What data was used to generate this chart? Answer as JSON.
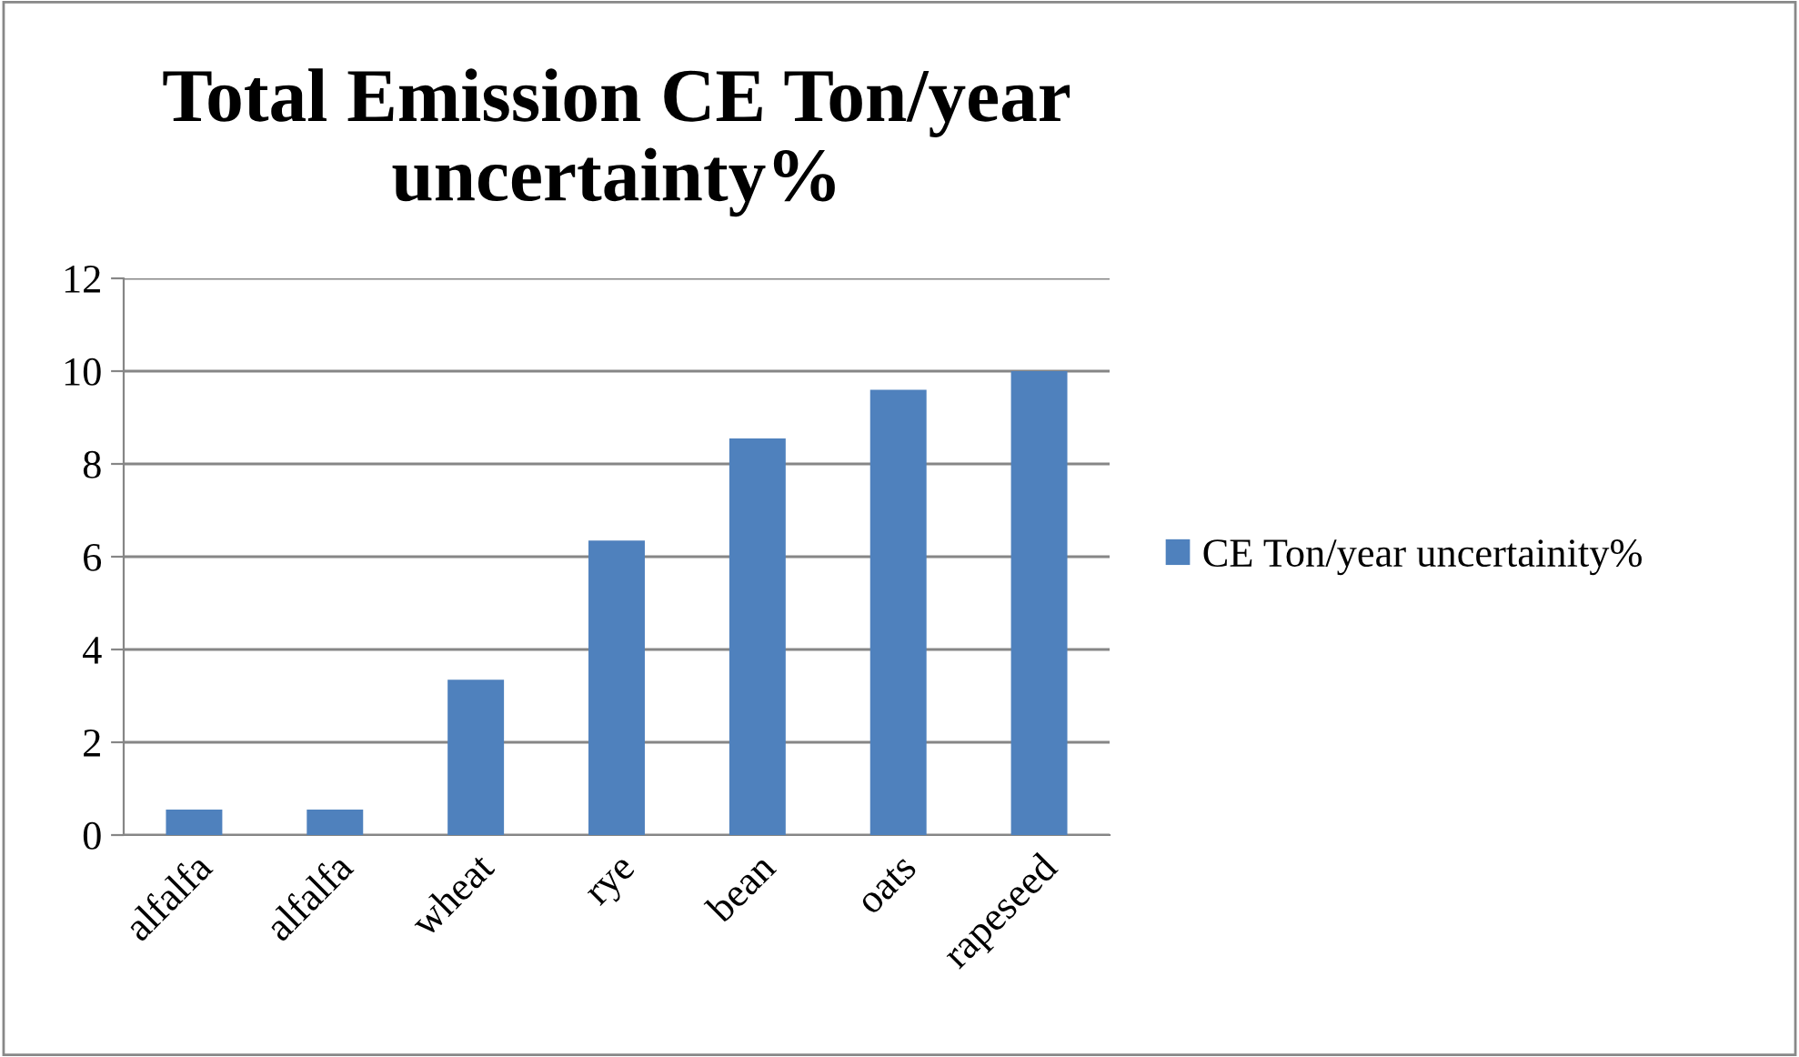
{
  "chart_data": {
    "type": "bar",
    "title": "Total Emission CE Ton/year uncertainty%",
    "categories": [
      "alfalfa",
      "alfalfa",
      "wheat",
      "rye",
      "bean",
      "oats",
      "rapeseed"
    ],
    "series": [
      {
        "name": "CE Ton/year uncertainity%",
        "color": "#4f81bd",
        "values": [
          0.55,
          0.55,
          3.35,
          6.35,
          8.55,
          9.6,
          10.0
        ]
      }
    ],
    "ylim": [
      0,
      12
    ],
    "yticks": [
      0,
      2,
      4,
      6,
      8,
      10,
      12
    ],
    "grid": "y",
    "legend": "right"
  }
}
